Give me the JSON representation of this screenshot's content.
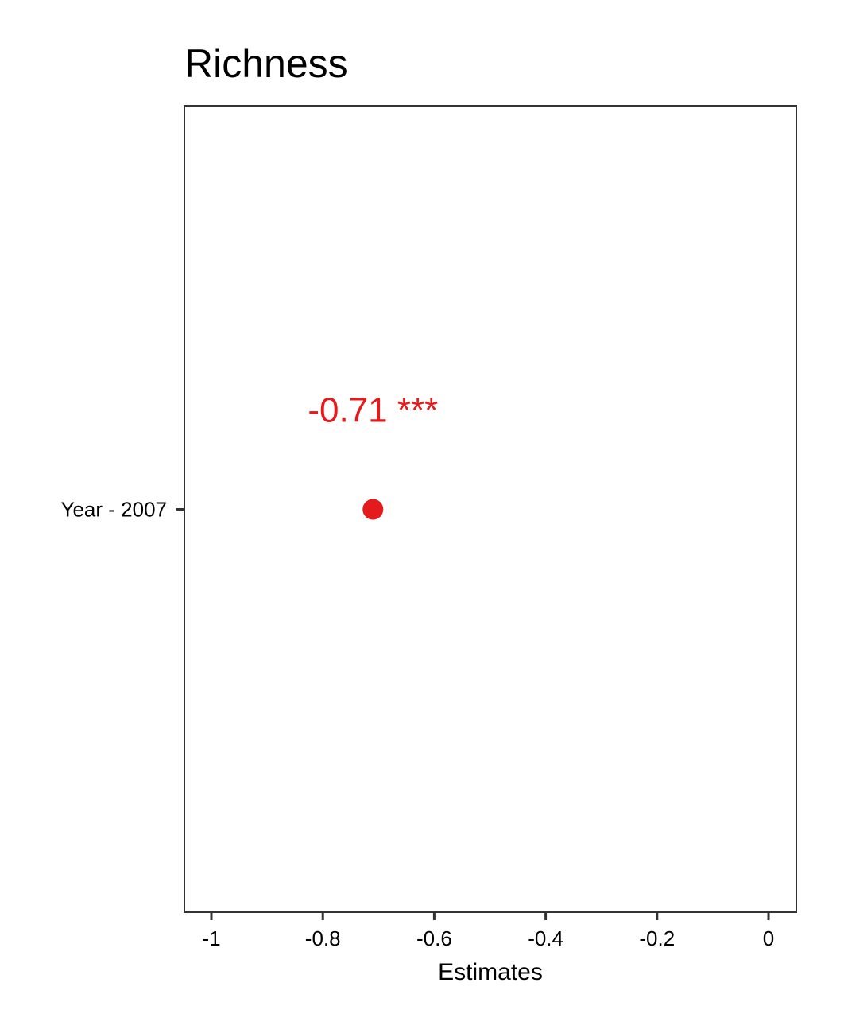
{
  "chart_data": {
    "type": "scatter",
    "title": "Richness",
    "xlabel": "Estimates",
    "ylabel": "",
    "xlim": [
      -1.05,
      0.05
    ],
    "x_ticks": [
      -1,
      -0.8,
      -0.6,
      -0.4,
      -0.2,
      0
    ],
    "x_tick_labels": [
      "-1",
      "-0.8",
      "-0.6",
      "-0.4",
      "-0.2",
      "0"
    ],
    "categories": [
      "Year - 2007"
    ],
    "series": [
      {
        "values": [
          -0.71
        ],
        "color": "#e41a1c",
        "labels": [
          "-0.71 ***"
        ]
      }
    ],
    "grid": false,
    "legend": "none"
  }
}
